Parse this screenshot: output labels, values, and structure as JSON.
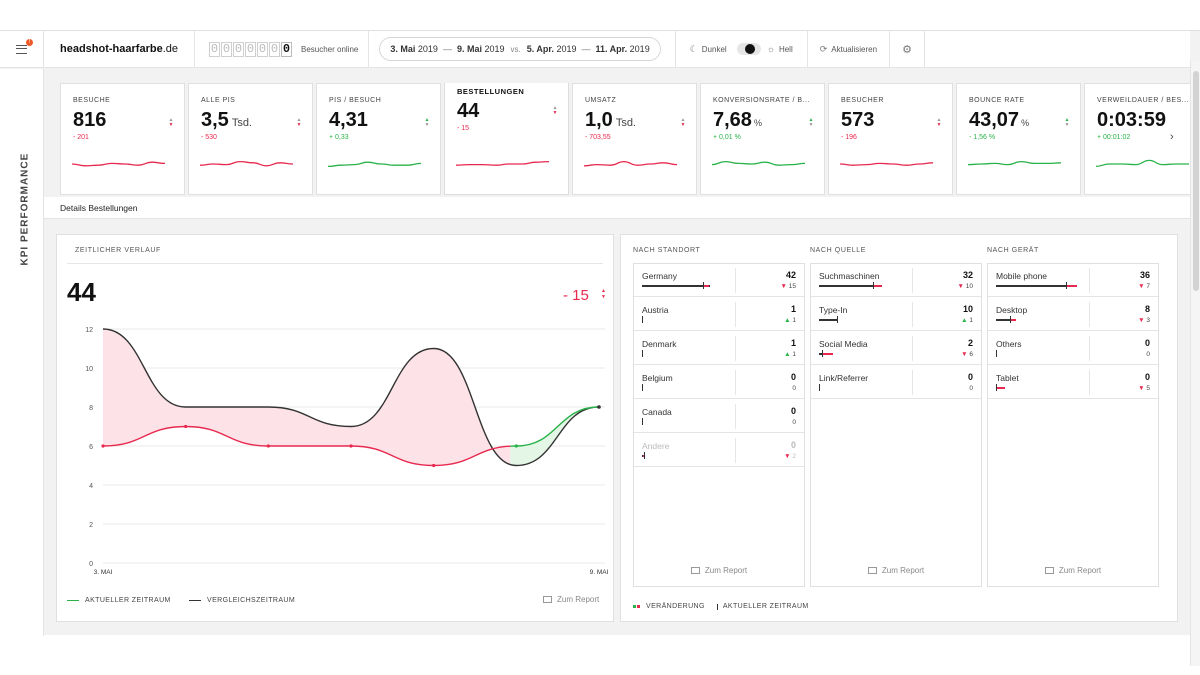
{
  "header": {
    "site_name": "headshot-haarfarbe",
    "site_tld": ".de",
    "visitor_digits": [
      "0",
      "0",
      "0",
      "0",
      "0",
      "0",
      "0"
    ],
    "visitors_online_label": "Besucher online",
    "date_from": "3. Mai",
    "date_from_year": "2019",
    "date_to": "9. Mai",
    "date_to_year": "2019",
    "vs_label": "vs.",
    "cmp_from": "5. Apr.",
    "cmp_from_year": "2019",
    "cmp_to": "11. Apr.",
    "cmp_to_year": "2019",
    "dash": "—",
    "theme_dark": "Dunkel",
    "theme_light": "Hell",
    "refresh_label": "Aktualisieren"
  },
  "side_label": "KPI PERFORMANCE",
  "kpis": [
    {
      "label": "BESUCHE",
      "value": "816",
      "unit": "",
      "delta": "- 201",
      "trend": "neg",
      "spark": [
        0.5,
        0.65,
        0.6,
        0.45,
        0.5,
        0.6,
        0.35,
        0.45
      ]
    },
    {
      "label": "ALLE PIS",
      "value": "3,5",
      "unit": "Tsd.",
      "delta": "- 530",
      "trend": "neg",
      "spark": [
        0.6,
        0.5,
        0.55,
        0.3,
        0.4,
        0.65,
        0.4,
        0.5
      ]
    },
    {
      "label": "PIS / BESUCH",
      "value": "4,31",
      "unit": "",
      "delta": "+ 0,33",
      "trend": "pos",
      "spark": [
        0.7,
        0.6,
        0.55,
        0.35,
        0.5,
        0.6,
        0.6,
        0.45
      ]
    },
    {
      "label": "BESTELLUNGEN",
      "value": "44",
      "unit": "",
      "delta": "- 15",
      "trend": "neg",
      "spark": [
        0.6,
        0.55,
        0.55,
        0.6,
        0.5,
        0.5,
        0.35,
        0.3
      ]
    },
    {
      "label": "UMSATZ",
      "value": "1,0",
      "unit": "Tsd.",
      "delta": "- 703,55",
      "trend": "neg",
      "spark": [
        0.65,
        0.55,
        0.6,
        0.3,
        0.6,
        0.5,
        0.4,
        0.55
      ]
    },
    {
      "label": "KONVERSIONSRATE / B...",
      "value": "7,68",
      "unit": "%",
      "delta": "+ 0,01 %",
      "trend": "pos",
      "spark": [
        0.55,
        0.3,
        0.45,
        0.5,
        0.35,
        0.6,
        0.55,
        0.45
      ]
    },
    {
      "label": "BESUCHER",
      "value": "573",
      "unit": "",
      "delta": "- 196",
      "trend": "neg",
      "spark": [
        0.5,
        0.6,
        0.55,
        0.45,
        0.5,
        0.6,
        0.5,
        0.4
      ]
    },
    {
      "label": "BOUNCE RATE",
      "value": "43,07",
      "unit": "%",
      "delta": "- 1,56 %",
      "trend": "pos",
      "spark": [
        0.55,
        0.5,
        0.45,
        0.55,
        0.3,
        0.45,
        0.45,
        0.4
      ]
    },
    {
      "label": "VERWEILDAUER / BES...",
      "value": "0:03:59",
      "unit": "",
      "delta": "+ 00:01:02",
      "trend": "pos",
      "spark": [
        0.7,
        0.5,
        0.5,
        0.55,
        0.2,
        0.55,
        0.5,
        0.5
      ]
    }
  ],
  "details_title": "Details Bestellungen",
  "timeline": {
    "title": "ZEITLICHER VERLAUF",
    "big_value": "44",
    "big_delta": "- 15",
    "legend_current": "AKTUELLER ZEITRAUM",
    "legend_compare": "VERGLEICHSZEITRAUM",
    "report_link": "Zum Report"
  },
  "chart_data": {
    "type": "line",
    "x": [
      "3. MAI",
      "",
      "",
      "",
      "",
      "",
      "9. MAI"
    ],
    "ylim": [
      0,
      12
    ],
    "yticks": [
      0,
      2,
      4,
      6,
      8,
      10,
      12
    ],
    "grid": true,
    "series": [
      {
        "name": "AKTUELLER ZEITRAUM",
        "values": [
          6,
          7,
          6,
          6,
          5,
          6,
          8
        ]
      },
      {
        "name": "VERGLEICHSZEITRAUM",
        "values": [
          12,
          8,
          8,
          7,
          11,
          5,
          8
        ]
      }
    ]
  },
  "breakdown": {
    "columns": [
      {
        "title": "NACH STANDORT",
        "rows": [
          {
            "name": "Germany",
            "value": "42",
            "delta": "15",
            "dir": "neg",
            "cur": 0.75,
            "cmp": 0.68,
            "muted": false
          },
          {
            "name": "Austria",
            "value": "1",
            "delta": "1",
            "dir": "pos",
            "cur": 0.0,
            "cmp": 0.0,
            "muted": false
          },
          {
            "name": "Denmark",
            "value": "1",
            "delta": "1",
            "dir": "pos",
            "cur": 0.0,
            "cmp": 0.0,
            "muted": false
          },
          {
            "name": "Belgium",
            "value": "0",
            "delta": "0",
            "dir": "none",
            "cur": 0.0,
            "cmp": 0.0,
            "muted": false
          },
          {
            "name": "Canada",
            "value": "0",
            "delta": "0",
            "dir": "none",
            "cur": 0.0,
            "cmp": 0.0,
            "muted": false
          },
          {
            "name": "Andere",
            "value": "0",
            "delta": "2",
            "dir": "neg",
            "cur": 0.0,
            "cmp": 0.02,
            "muted": true
          }
        ],
        "report": "Zum Report"
      },
      {
        "title": "NACH QUELLE",
        "rows": [
          {
            "name": "Suchmaschinen",
            "value": "32",
            "delta": "10",
            "dir": "neg",
            "cur": 0.7,
            "cmp": 0.6,
            "muted": false
          },
          {
            "name": "Type-In",
            "value": "10",
            "delta": "1",
            "dir": "pos",
            "cur": 0.2,
            "cmp": 0.2,
            "muted": false
          },
          {
            "name": "Social Media",
            "value": "2",
            "delta": "6",
            "dir": "neg",
            "cur": 0.16,
            "cmp": 0.03,
            "muted": false
          },
          {
            "name": "Link/Referrer",
            "value": "0",
            "delta": "0",
            "dir": "none",
            "cur": 0.0,
            "cmp": 0.0,
            "muted": false
          }
        ],
        "report": "Zum Report"
      },
      {
        "title": "NACH GERÄT",
        "rows": [
          {
            "name": "Mobile phone",
            "value": "36",
            "delta": "7",
            "dir": "neg",
            "cur": 0.9,
            "cmp": 0.78,
            "muted": false
          },
          {
            "name": "Desktop",
            "value": "8",
            "delta": "3",
            "dir": "neg",
            "cur": 0.22,
            "cmp": 0.15,
            "muted": false
          },
          {
            "name": "Others",
            "value": "0",
            "delta": "0",
            "dir": "none",
            "cur": 0.0,
            "cmp": 0.0,
            "muted": false
          },
          {
            "name": "Tablet",
            "value": "0",
            "delta": "5",
            "dir": "neg",
            "cur": 0.1,
            "cmp": 0.0,
            "muted": false
          }
        ],
        "report": "Zum Report"
      }
    ],
    "legend_change": "VERÄNDERUNG",
    "legend_current": "AKTUELLER ZEITRAUM"
  },
  "colors": {
    "negative": "#e8294f",
    "positive": "#2ab24a",
    "neutral": "#333333"
  }
}
